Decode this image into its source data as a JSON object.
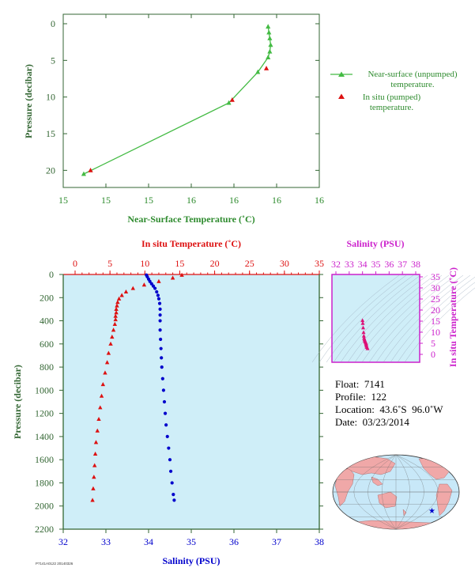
{
  "chart_data": [
    {
      "type": "line",
      "xlabel": "Near-Surface Temperature (˚C)",
      "ylabel": "Pressure (decibar)",
      "xlim": [
        15,
        16.5
      ],
      "ylim": [
        0,
        22
      ],
      "y_inverted": true,
      "x_ticks": [
        15,
        15.25,
        15.5,
        15.75,
        16,
        16.25,
        16.5
      ],
      "x_tick_labels": [
        "15",
        "15",
        "15",
        "16",
        "16",
        "16",
        "16"
      ],
      "y_ticks": [
        0,
        5,
        10,
        15,
        20
      ],
      "legend_position": "right",
      "series": [
        {
          "name": "Near-surface (unpumped) temperature.",
          "color": "#44bb44",
          "marker": "triangle",
          "x": [
            16.2,
            16.205,
            16.21,
            16.215,
            16.21,
            16.2,
            16.14,
            15.97,
            15.12
          ],
          "y": [
            0.4,
            1.2,
            2.0,
            2.9,
            3.8,
            4.6,
            6.6,
            10.8,
            20.5
          ]
        },
        {
          "name": "In situ (pumped) temperature.",
          "color": "#dd1111",
          "marker": "triangle",
          "x": [
            16.19,
            15.99,
            15.16
          ],
          "y": [
            6.1,
            10.4,
            20.0
          ]
        }
      ]
    },
    {
      "type": "scatter",
      "ylabel": "Pressure (decibar)",
      "ylim": [
        0,
        2200
      ],
      "y_inverted": true,
      "y_ticks": [
        0,
        200,
        400,
        600,
        800,
        1000,
        1200,
        1400,
        1600,
        1800,
        2000,
        2200
      ],
      "top_axis": {
        "label": "In situ Temperature (˚C)",
        "lim": [
          0,
          35
        ],
        "ticks": [
          0,
          5,
          10,
          15,
          20,
          25,
          30,
          35
        ],
        "color": "#dd1111"
      },
      "bottom_axis": {
        "label": "Salinity (PSU)",
        "lim": [
          32,
          38
        ],
        "ticks": [
          32,
          33,
          34,
          35,
          36,
          37,
          38
        ],
        "color": "#0000cc"
      },
      "series": [
        {
          "name": "In situ Temperature (˚C)",
          "color": "#dd1111",
          "marker": "triangle",
          "pressure": [
            5,
            30,
            60,
            90,
            120,
            150,
            180,
            210,
            240,
            270,
            300,
            330,
            360,
            390,
            430,
            480,
            540,
            600,
            680,
            760,
            850,
            950,
            1050,
            1150,
            1250,
            1350,
            1450,
            1550,
            1650,
            1750,
            1850,
            1950
          ],
          "values": [
            15.3,
            14.0,
            12.0,
            9.9,
            8.3,
            7.3,
            6.7,
            6.3,
            6.1,
            6.0,
            5.9,
            5.9,
            5.8,
            5.8,
            5.7,
            5.5,
            5.3,
            5.1,
            4.8,
            4.6,
            4.3,
            4.0,
            3.8,
            3.6,
            3.4,
            3.2,
            3.0,
            2.9,
            2.8,
            2.7,
            2.6,
            2.5
          ]
        },
        {
          "name": "Salinity (PSU)",
          "color": "#0000cc",
          "marker": "circle",
          "pressure": [
            5,
            20,
            40,
            60,
            80,
            100,
            120,
            150,
            180,
            210,
            250,
            300,
            350,
            400,
            480,
            560,
            640,
            720,
            800,
            900,
            1000,
            1100,
            1200,
            1300,
            1400,
            1500,
            1600,
            1700,
            1800,
            1900,
            1950
          ],
          "values": [
            33.95,
            33.97,
            34.0,
            34.03,
            34.07,
            34.11,
            34.15,
            34.19,
            34.22,
            34.24,
            34.26,
            34.27,
            34.27,
            34.27,
            34.27,
            34.28,
            34.29,
            34.3,
            34.31,
            34.33,
            34.35,
            34.37,
            34.39,
            34.41,
            34.44,
            34.47,
            34.5,
            34.52,
            34.55,
            34.58,
            34.6
          ]
        }
      ]
    },
    {
      "type": "scatter",
      "xlabel": "Salinity (PSU)",
      "ylabel": "In situ Temperature (˚C)",
      "xlim": [
        32,
        38
      ],
      "ylim": [
        0,
        35
      ],
      "x_ticks": [
        32,
        33,
        34,
        35,
        36,
        37,
        38
      ],
      "y_ticks": [
        0,
        5,
        10,
        15,
        20,
        25,
        30,
        35
      ],
      "series": [
        {
          "color": "#dd1177",
          "marker": "triangle",
          "x": [
            34.0,
            34.02,
            34.05,
            34.08,
            34.1,
            34.12,
            34.15,
            34.18,
            34.2,
            34.22,
            34.25,
            34.27,
            34.28,
            34.3,
            34.33,
            34.38
          ],
          "y": [
            15.3,
            14.0,
            12.0,
            9.9,
            8.3,
            7.3,
            6.7,
            6.2,
            5.9,
            5.6,
            5.2,
            4.8,
            4.3,
            3.8,
            3.2,
            2.6
          ]
        }
      ]
    }
  ],
  "float_info": {
    "float": "Float:  7141",
    "profile": "Profile:  122",
    "location": "Location:  43.6˚S  96.0˚W",
    "date": "Date:  03/23/2014"
  },
  "footer_code": "P7141A0122 20140326",
  "map": {
    "ocean_color": "#c8e8f8",
    "land_color": "#f0a8a8",
    "marker_color": "#0000cc",
    "marker_lon": -96.0,
    "marker_lat": -43.6
  },
  "colors": {
    "axis_green": "#336633",
    "label_green": "#2e8b2e",
    "plot_bg": "#cfeef8",
    "temp_red": "#dd1111",
    "sal_blue": "#0000cc",
    "ts_magenta": "#cc22cc"
  }
}
